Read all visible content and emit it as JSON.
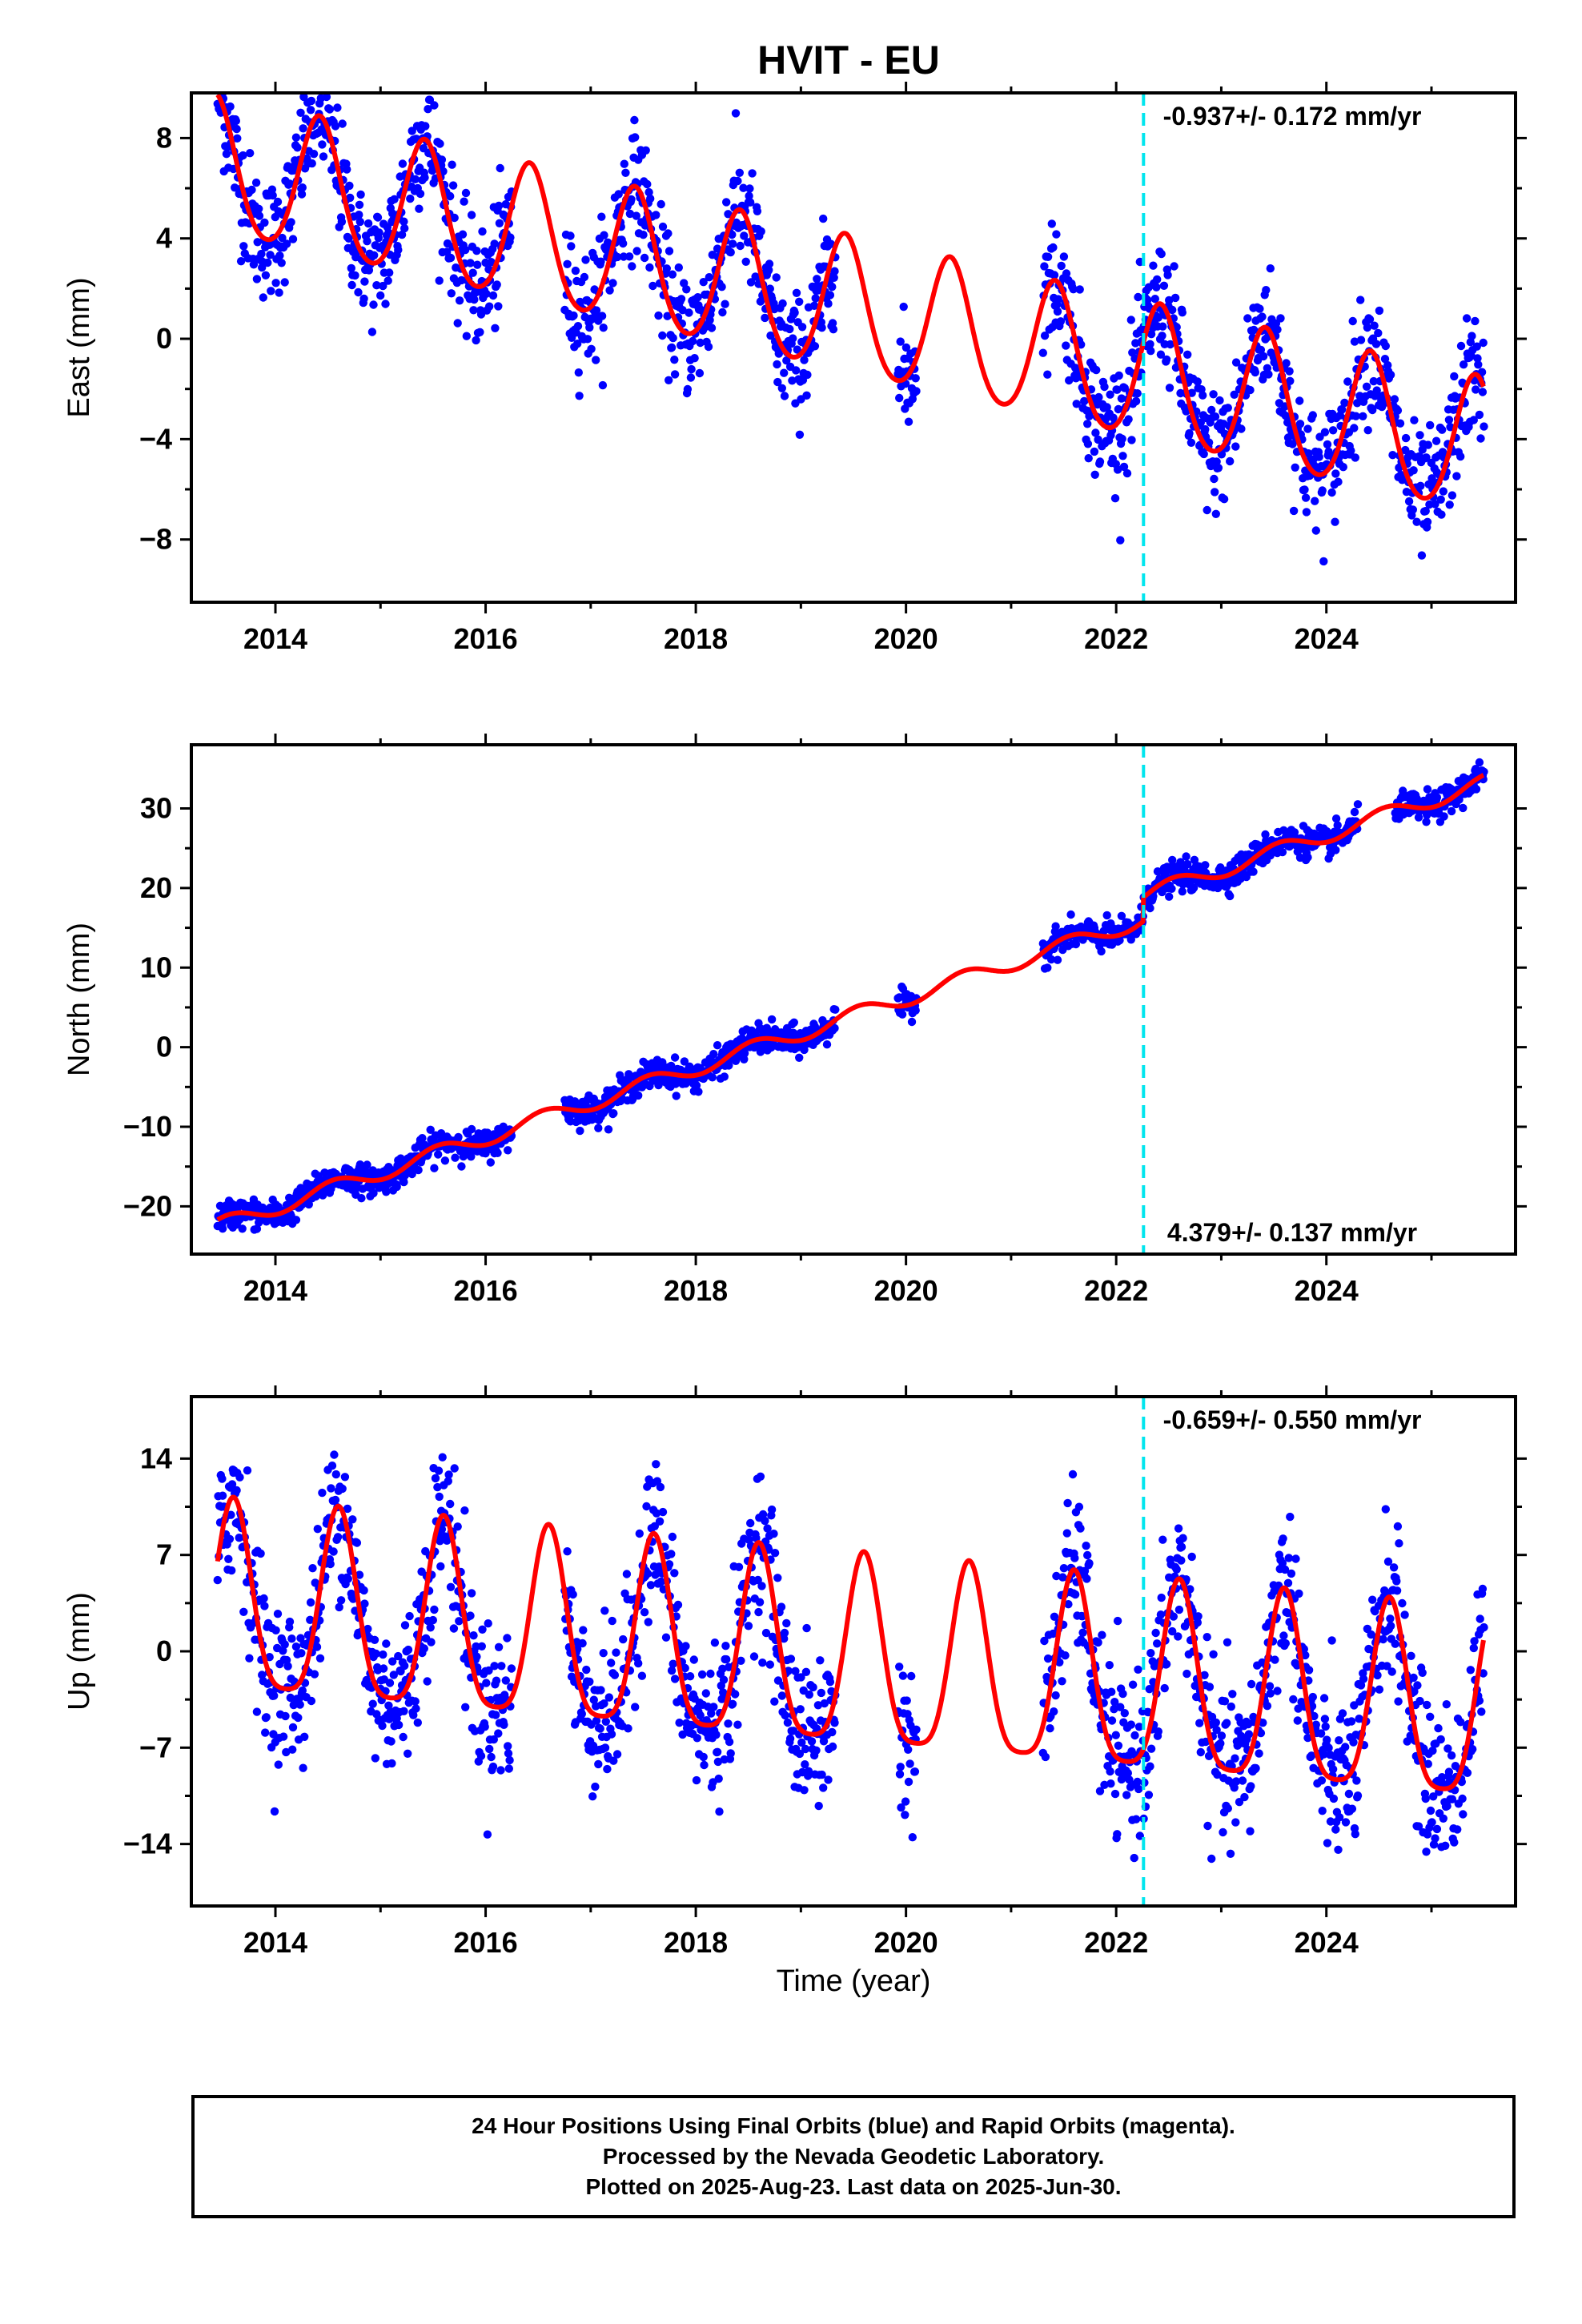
{
  "title": "HVIT - EU",
  "x_axis_label": "Time (year)",
  "footer": {
    "line1": "24 Hour Positions Using Final Orbits (blue) and Rapid Orbits (magenta).",
    "line2": "Processed by the Nevada Geodetic Laboratory.",
    "line3": "Plotted on 2025-Aug-23. Last data on 2025-Jun-30."
  },
  "colors": {
    "data": "#0000ff",
    "model": "#ff0000",
    "offset": "#00e5ee"
  },
  "chart_data": [
    {
      "type": "scatter",
      "panel": "east",
      "ylabel": "East (mm)",
      "rate_label": "-0.937+/- 0.172 mm/yr",
      "rate_label_position": "top-right",
      "xlim": [
        2013.2,
        2025.8
      ],
      "ylim": [
        -10.5,
        9.8
      ],
      "xticks": [
        2014,
        2016,
        2018,
        2020,
        2022,
        2024
      ],
      "yticks": [
        -8,
        -4,
        0,
        4,
        8
      ],
      "ytick_labels": [
        "−8",
        "−4",
        "0",
        "4",
        "8"
      ],
      "offset_epoch": 2022.26,
      "data_gaps": [
        [
          2016.25,
          2016.75
        ],
        [
          2019.33,
          2019.92
        ],
        [
          2020.1,
          2021.3
        ]
      ],
      "model": {
        "start": 2013.45,
        "end": 2025.5,
        "y0": 6.8,
        "rate": -0.937,
        "annual_amp": 2.7,
        "annual_phase_year": 0.42,
        "semiannual_amp": 0.3,
        "offsets": []
      },
      "scatter_sd": 1.2
    },
    {
      "type": "scatter",
      "panel": "north",
      "ylabel": "North (mm)",
      "rate_label": "4.379+/- 0.137 mm/yr",
      "rate_label_position": "bottom-right",
      "xlim": [
        2013.2,
        2025.8
      ],
      "ylim": [
        -26,
        38
      ],
      "xticks": [
        2014,
        2016,
        2018,
        2020,
        2022,
        2024
      ],
      "yticks": [
        -20,
        -10,
        0,
        10,
        20,
        30
      ],
      "ytick_labels": [
        "−20",
        "−10",
        "0",
        "10",
        "20",
        "30"
      ],
      "offset_epoch": 2022.26,
      "data_gaps": [
        [
          2016.25,
          2016.75
        ],
        [
          2019.33,
          2019.92
        ],
        [
          2020.1,
          2021.3
        ],
        [
          2024.3,
          2024.65
        ]
      ],
      "model": {
        "start": 2013.45,
        "end": 2025.5,
        "y0": -22.5,
        "rate": 4.379,
        "annual_amp": 1.0,
        "annual_phase_year": 0.55,
        "semiannual_amp": 0.0,
        "offsets": [
          [
            2022.26,
            3.0
          ]
        ]
      },
      "scatter_sd": 0.9
    },
    {
      "type": "scatter",
      "panel": "up",
      "ylabel": "Up (mm)",
      "rate_label": "-0.659+/- 0.550 mm/yr",
      "rate_label_position": "top-right",
      "xlim": [
        2013.2,
        2025.8
      ],
      "ylim": [
        -18.5,
        18.5
      ],
      "xticks": [
        2014,
        2016,
        2018,
        2020,
        2022,
        2024
      ],
      "yticks": [
        -14,
        -7,
        0,
        7,
        14
      ],
      "ytick_labels": [
        "−14",
        "−7",
        "0",
        "7",
        "14"
      ],
      "offset_epoch": 2022.26,
      "data_gaps": [
        [
          2016.25,
          2016.75
        ],
        [
          2019.33,
          2019.92
        ],
        [
          2020.1,
          2021.3
        ]
      ],
      "model": {
        "start": 2013.45,
        "end": 2025.5,
        "y0": 3.0,
        "rate": -0.659,
        "annual_amp": 6.8,
        "annual_phase_year": 0.6,
        "semiannual_amp": 1.5,
        "offsets": []
      },
      "scatter_sd": 2.8
    }
  ]
}
